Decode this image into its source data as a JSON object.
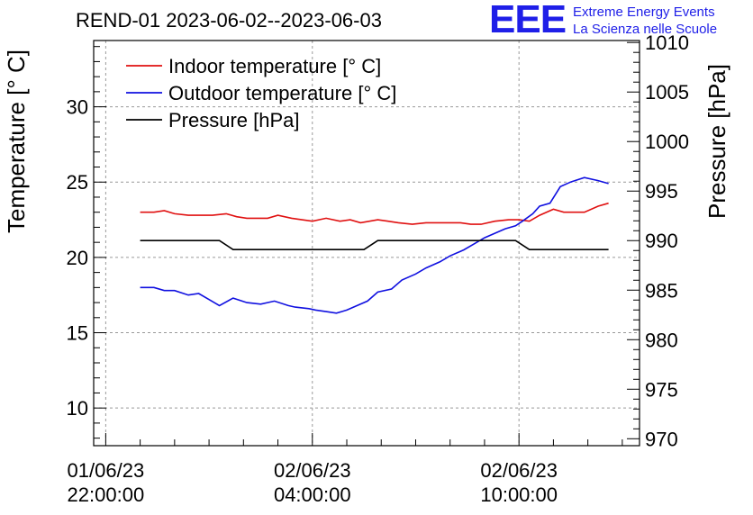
{
  "title": "REND-01 2023-06-02--2023-06-03",
  "logo": {
    "text": "EEE",
    "line1": "Extreme Energy Events",
    "line2": "La Scienza nelle Scuole",
    "color": "#1f1fe8"
  },
  "chart_data": {
    "type": "line",
    "ylabel_left": "Temperature [° C]",
    "ylabel_right": "Pressure [hPa]",
    "ylim_left": [
      7.5,
      34.4
    ],
    "ylim_right": [
      969.3,
      1010.2
    ],
    "yticks_left": [
      10,
      15,
      20,
      25,
      30
    ],
    "yticks_right": [
      970,
      975,
      980,
      985,
      990,
      995,
      1000,
      1005,
      1010
    ],
    "xticks": [
      {
        "hour": 0,
        "date": "01/06/23",
        "time": "22:00:00"
      },
      {
        "hour": 6,
        "date": "02/06/23",
        "time": "04:00:00"
      },
      {
        "hour": 12,
        "date": "02/06/23",
        "time": "10:00:00"
      }
    ],
    "xlim_hours": [
      -0.35,
      15.5
    ],
    "grid": true,
    "legend_position": "top-left",
    "series": [
      {
        "name": "Indoor temperature [° C]",
        "axis": "left",
        "color": "#e01010",
        "x": [
          1.0,
          1.4,
          1.7,
          2.0,
          2.4,
          2.8,
          3.1,
          3.5,
          3.8,
          4.1,
          4.5,
          4.7,
          5.0,
          5.4,
          5.7,
          6.0,
          6.4,
          6.8,
          7.1,
          7.4,
          7.9,
          8.2,
          8.5,
          8.9,
          9.3,
          9.6,
          9.9,
          10.3,
          10.6,
          10.9,
          11.3,
          11.7,
          12.0,
          12.3,
          12.6,
          13.0,
          13.3,
          13.6,
          13.9,
          14.3,
          14.6
        ],
        "y": [
          23.0,
          23.0,
          23.1,
          22.9,
          22.8,
          22.8,
          22.8,
          22.9,
          22.7,
          22.6,
          22.6,
          22.6,
          22.8,
          22.6,
          22.5,
          22.4,
          22.6,
          22.4,
          22.5,
          22.3,
          22.5,
          22.4,
          22.3,
          22.2,
          22.3,
          22.3,
          22.3,
          22.3,
          22.2,
          22.2,
          22.4,
          22.5,
          22.5,
          22.4,
          22.8,
          23.2,
          23.0,
          23.0,
          23.0,
          23.4,
          23.6
        ]
      },
      {
        "name": "Outdoor temperature [° C]",
        "axis": "left",
        "color": "#1010e0",
        "x": [
          1.0,
          1.4,
          1.7,
          2.0,
          2.4,
          2.7,
          3.0,
          3.3,
          3.7,
          4.1,
          4.5,
          4.9,
          5.3,
          5.5,
          5.9,
          6.1,
          6.4,
          6.7,
          7.0,
          7.3,
          7.6,
          7.9,
          8.3,
          8.6,
          9.0,
          9.3,
          9.7,
          10.0,
          10.4,
          10.7,
          11.0,
          11.3,
          11.6,
          11.9,
          12.1,
          12.4,
          12.6,
          12.9,
          13.2,
          13.5,
          13.9,
          14.3,
          14.6
        ],
        "y": [
          18.0,
          18.0,
          17.8,
          17.8,
          17.5,
          17.6,
          17.2,
          16.8,
          17.3,
          17.0,
          16.9,
          17.1,
          16.8,
          16.7,
          16.6,
          16.5,
          16.4,
          16.3,
          16.5,
          16.8,
          17.1,
          17.7,
          17.9,
          18.5,
          18.9,
          19.3,
          19.7,
          20.1,
          20.5,
          20.9,
          21.3,
          21.6,
          21.9,
          22.1,
          22.4,
          22.9,
          23.4,
          23.6,
          24.7,
          25.0,
          25.3,
          25.1,
          24.9
        ]
      },
      {
        "name": "Pressure [hPa]",
        "axis": "right",
        "color": "#000000",
        "x": [
          1.0,
          3.3,
          3.7,
          7.5,
          7.9,
          11.9,
          12.3,
          14.6
        ],
        "y": [
          990.0,
          990.0,
          989.1,
          989.1,
          990.0,
          990.0,
          989.1,
          989.1
        ]
      }
    ]
  }
}
